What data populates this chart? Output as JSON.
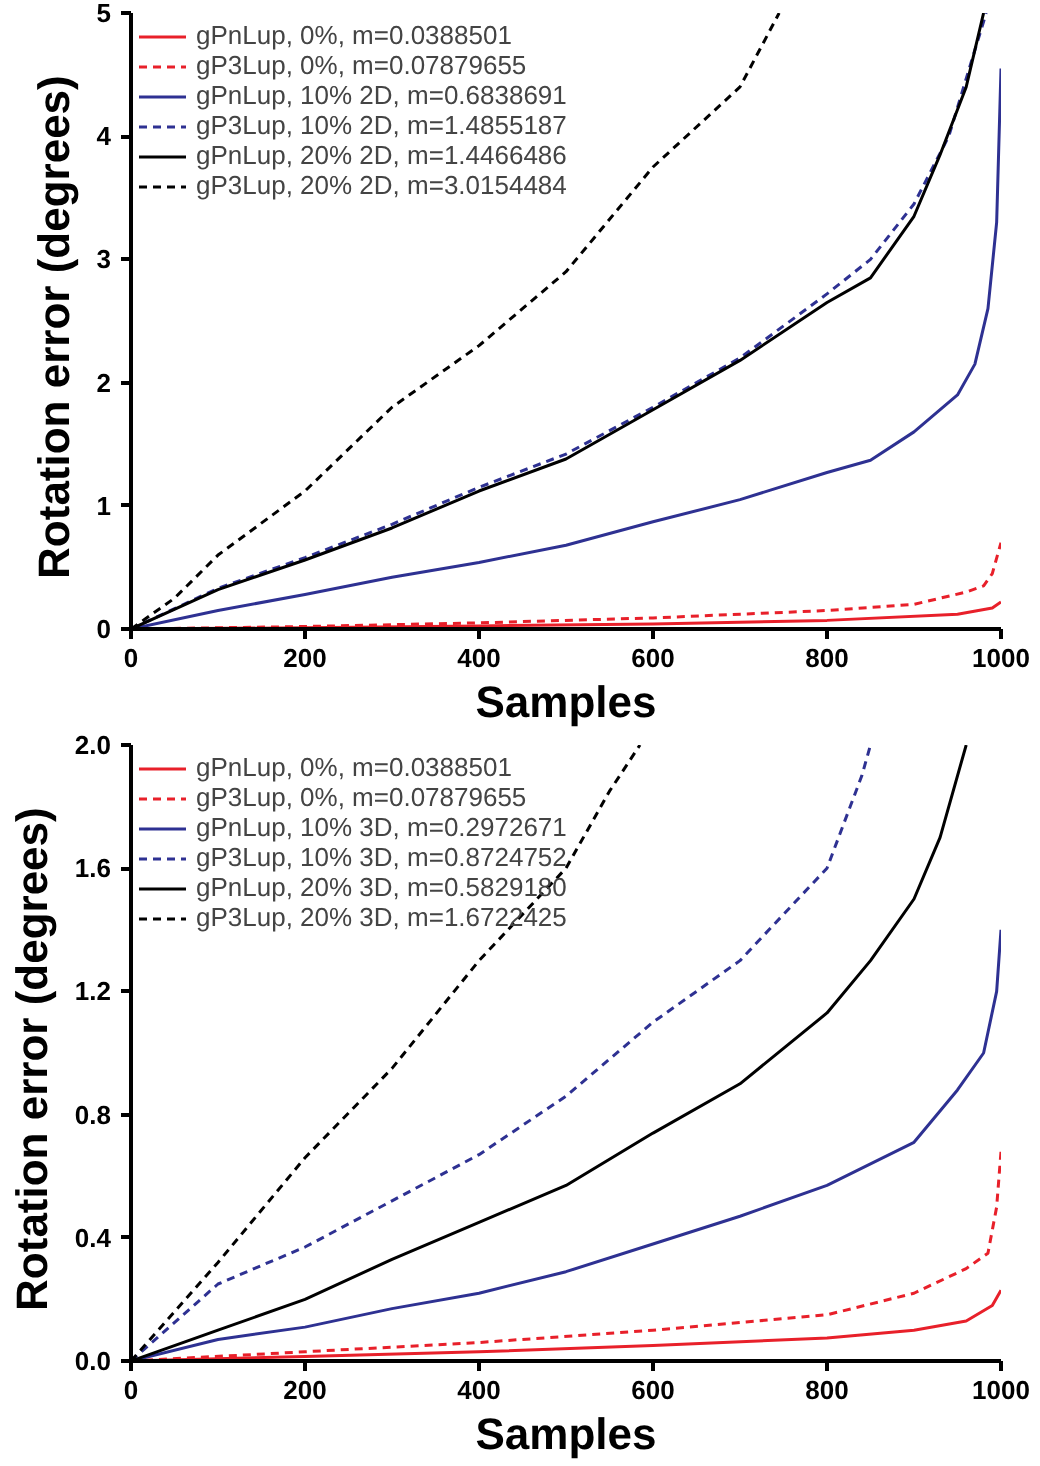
{
  "chart_data": [
    {
      "type": "line",
      "xlabel": "Samples",
      "ylabel": "Rotation error  (degrees)",
      "xlim": [
        0,
        1000
      ],
      "ylim": [
        0,
        5
      ],
      "xticks": [
        0,
        200,
        400,
        600,
        800,
        1000
      ],
      "yticks": [
        0,
        1,
        2,
        3,
        4,
        5
      ],
      "grid": false,
      "legend": "top left",
      "series": [
        {
          "name": "gPnLup, 0%, m=0.0388501",
          "color": "#e8202a",
          "line_style": "solid",
          "x": [
            0,
            200,
            400,
            600,
            800,
            950,
            990,
            1000
          ],
          "values": [
            0,
            0.01,
            0.025,
            0.04,
            0.07,
            0.12,
            0.17,
            0.22
          ]
        },
        {
          "name": "gP3Lup, 0%, m=0.07879655",
          "color": "#e8202a",
          "line_style": "dashed",
          "x": [
            0,
            200,
            400,
            600,
            800,
            900,
            960,
            980,
            990,
            1000
          ],
          "values": [
            0,
            0.02,
            0.05,
            0.09,
            0.15,
            0.2,
            0.3,
            0.35,
            0.45,
            0.7
          ]
        },
        {
          "name": "gPnLup, 10% 2D, m=0.6838691",
          "color": "#2e3192",
          "line_style": "solid",
          "x": [
            0,
            100,
            200,
            300,
            400,
            500,
            600,
            700,
            800,
            850,
            900,
            950,
            970,
            985,
            995,
            1000
          ],
          "values": [
            0,
            0.15,
            0.28,
            0.42,
            0.54,
            0.68,
            0.87,
            1.05,
            1.27,
            1.37,
            1.6,
            1.9,
            2.15,
            2.6,
            3.3,
            4.55
          ]
        },
        {
          "name": "gP3Lup, 10% 2D, m=1.4855187",
          "color": "#2e3192",
          "line_style": "dashed",
          "x": [
            0,
            100,
            200,
            300,
            400,
            500,
            600,
            700,
            800,
            850,
            900,
            940,
            970,
            983
          ],
          "values": [
            0,
            0.33,
            0.58,
            0.85,
            1.15,
            1.42,
            1.8,
            2.2,
            2.72,
            3.0,
            3.45,
            4.0,
            4.7,
            5.0
          ]
        },
        {
          "name": "gPnLup, 20% 2D, m=1.4466486",
          "color": "#000000",
          "line_style": "solid",
          "x": [
            0,
            100,
            200,
            300,
            400,
            500,
            600,
            700,
            800,
            850,
            900,
            930,
            960,
            980
          ],
          "values": [
            0,
            0.32,
            0.56,
            0.82,
            1.12,
            1.38,
            1.78,
            2.18,
            2.65,
            2.85,
            3.35,
            3.85,
            4.4,
            5.0
          ]
        },
        {
          "name": "gP3Lup, 20% 2D, m=3.0154484",
          "color": "#000000",
          "line_style": "dashed",
          "x": [
            0,
            50,
            100,
            200,
            300,
            400,
            500,
            600,
            700,
            745
          ],
          "values": [
            0,
            0.25,
            0.6,
            1.12,
            1.8,
            2.3,
            2.9,
            3.75,
            4.4,
            5.0
          ]
        }
      ]
    },
    {
      "type": "line",
      "xlabel": "Samples",
      "ylabel": "Rotation error  (degrees)",
      "xlim": [
        0,
        1000
      ],
      "ylim": [
        0,
        2
      ],
      "xticks": [
        0,
        200,
        400,
        600,
        800,
        1000
      ],
      "yticks": [
        {
          "value": 0,
          "label": "0.0"
        },
        {
          "value": 0.4,
          "label": "0.4"
        },
        {
          "value": 0.8,
          "label": "0.8"
        },
        {
          "value": 1.2,
          "label": "1.2"
        },
        {
          "value": 1.6,
          "label": "1.6"
        },
        {
          "value": 2,
          "label": "2.0"
        }
      ],
      "grid": false,
      "legend": "top left",
      "series": [
        {
          "name": "gPnLup, 0%, m=0.0388501",
          "color": "#e8202a",
          "line_style": "solid",
          "x": [
            0,
            200,
            400,
            600,
            800,
            900,
            960,
            990,
            1000
          ],
          "values": [
            0,
            0.015,
            0.03,
            0.05,
            0.075,
            0.1,
            0.13,
            0.18,
            0.23
          ]
        },
        {
          "name": "gP3Lup, 0%, m=0.07879655",
          "color": "#e8202a",
          "line_style": "dashed",
          "x": [
            0,
            200,
            400,
            600,
            800,
            900,
            960,
            985,
            995,
            1000
          ],
          "values": [
            0,
            0.03,
            0.06,
            0.1,
            0.15,
            0.22,
            0.3,
            0.35,
            0.5,
            0.68
          ]
        },
        {
          "name": "gPnLup, 10% 3D, m=0.2972671",
          "color": "#2e3192",
          "line_style": "solid",
          "x": [
            0,
            100,
            200,
            300,
            400,
            500,
            600,
            700,
            800,
            900,
            950,
            980,
            995,
            1000
          ],
          "values": [
            0,
            0.07,
            0.11,
            0.17,
            0.22,
            0.29,
            0.38,
            0.47,
            0.57,
            0.71,
            0.88,
            1.0,
            1.2,
            1.4
          ]
        },
        {
          "name": "gP3Lup, 10% 3D, m=0.8724752",
          "color": "#2e3192",
          "line_style": "dashed",
          "x": [
            0,
            100,
            200,
            300,
            400,
            500,
            600,
            700,
            800,
            840,
            850
          ],
          "values": [
            0,
            0.25,
            0.37,
            0.52,
            0.67,
            0.86,
            1.1,
            1.3,
            1.6,
            1.9,
            2.0
          ]
        },
        {
          "name": "gPnLup, 20% 3D, m=0.5829180",
          "color": "#000000",
          "line_style": "solid",
          "x": [
            0,
            100,
            200,
            300,
            400,
            500,
            600,
            700,
            800,
            850,
            900,
            930,
            960
          ],
          "values": [
            0,
            0.1,
            0.2,
            0.33,
            0.45,
            0.57,
            0.74,
            0.9,
            1.13,
            1.3,
            1.5,
            1.7,
            2.0
          ]
        },
        {
          "name": "gP3Lup, 20% 3D, m=1.6722425",
          "color": "#000000",
          "line_style": "dashed",
          "x": [
            0,
            100,
            200,
            300,
            400,
            500,
            550,
            585
          ],
          "values": [
            0,
            0.32,
            0.66,
            0.95,
            1.3,
            1.6,
            1.85,
            2.0
          ]
        }
      ]
    }
  ]
}
